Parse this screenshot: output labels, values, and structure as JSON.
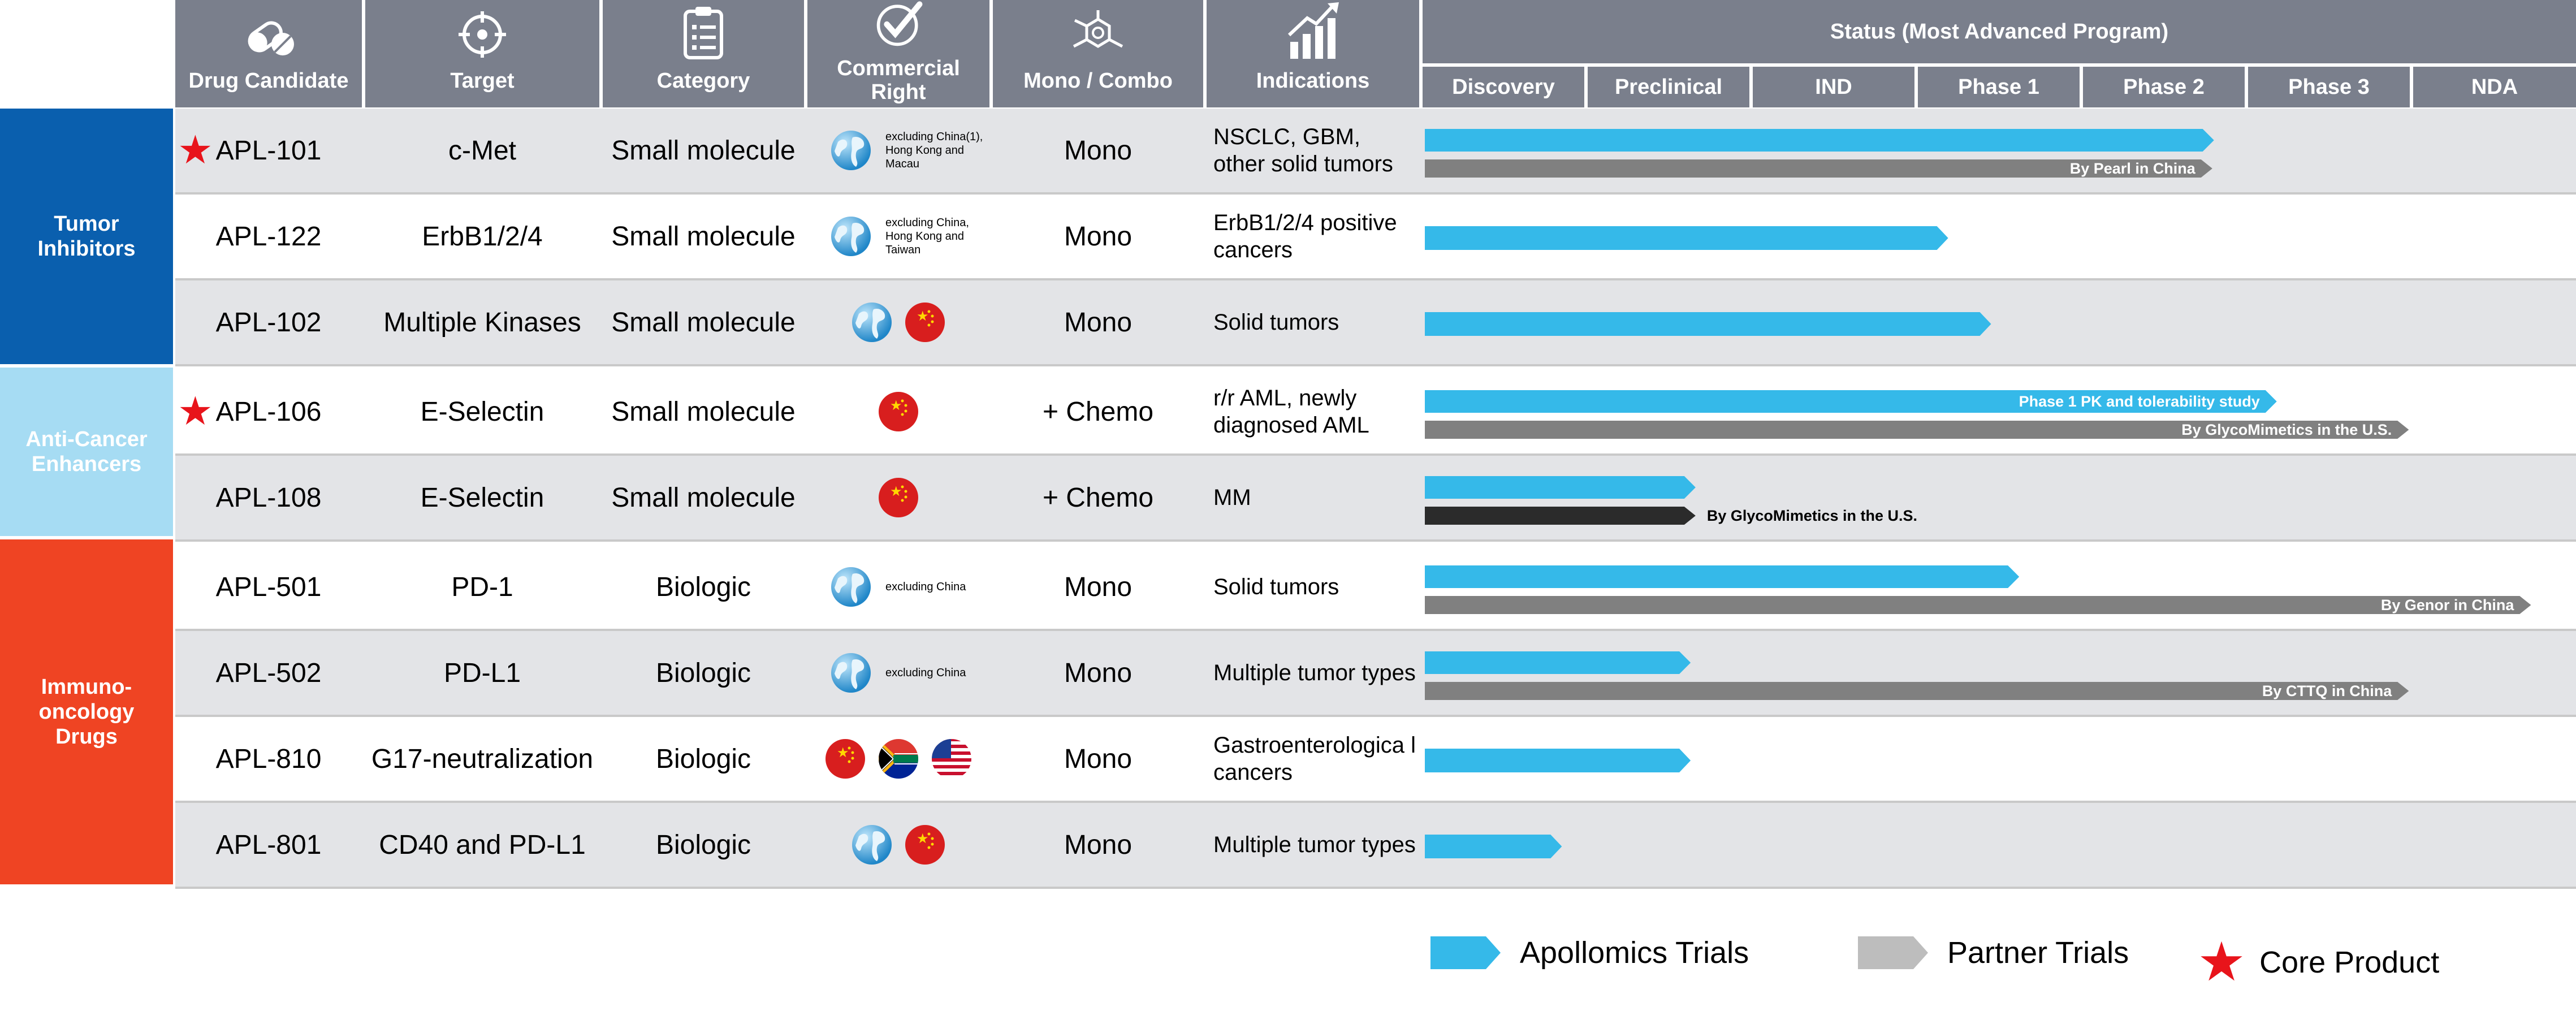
{
  "columns": {
    "drug_candidate": "Drug Candidate",
    "target": "Target",
    "category": "Category",
    "commercial_right": "Commercial Right",
    "mono_combo": "Mono / Combo",
    "indications": "Indications"
  },
  "status_title": "Status (Most Advanced Program)",
  "stages": [
    "Discovery",
    "Preclinical",
    "IND",
    "Phase 1",
    "Phase 2",
    "Phase 3",
    "NDA"
  ],
  "groups": [
    {
      "name": "Tumor Inhibitors",
      "color": "#0a5fae"
    },
    {
      "name": "Anti-Cancer Enhancers",
      "color": "#a6dcf3"
    },
    {
      "name": "Immuno-oncology Drugs",
      "color": "#ef4423"
    }
  ],
  "rows": [
    {
      "drug": "APL-101",
      "target": "c-Met",
      "category": "Small molecule",
      "rights": [
        "globe"
      ],
      "rights_text": "excluding China(1), Hong Kong and Macau",
      "mono": "Mono",
      "indication": "NSCLC, GBM, other solid tumors",
      "core": true,
      "bars": [
        {
          "type": "apollomics",
          "end": 4.78,
          "label": ""
        },
        {
          "type": "partner",
          "end": 4.77,
          "label": "By Pearl in China"
        }
      ]
    },
    {
      "drug": "APL-122",
      "target": "ErbB1/2/4",
      "category": "Small molecule",
      "rights": [
        "globe"
      ],
      "rights_text": "excluding China, Hong Kong and Taiwan",
      "mono": "Mono",
      "indication": "ErbB1/2/4 positive cancers",
      "core": false,
      "bars": [
        {
          "type": "apollomics",
          "end": 3.17,
          "label": ""
        }
      ]
    },
    {
      "drug": "APL-102",
      "target": "Multiple Kinases",
      "category": "Small molecule",
      "rights": [
        "globe",
        "china"
      ],
      "rights_text": "",
      "mono": "Mono",
      "indication": "Solid tumors",
      "core": false,
      "bars": [
        {
          "type": "apollomics",
          "end": 3.43,
          "label": ""
        }
      ]
    },
    {
      "drug": "APL-106",
      "target": "E-Selectin",
      "category": "Small molecule",
      "rights": [
        "china"
      ],
      "rights_text": "",
      "mono": "+ Chemo",
      "indication": "r/r AML, newly diagnosed AML",
      "core": true,
      "bars": [
        {
          "type": "apollomics",
          "end": 5.16,
          "label": "Phase 1 PK and tolerability study"
        },
        {
          "type": "partner",
          "end": 5.96,
          "label": "By GlycoMimetics in the U.S."
        }
      ]
    },
    {
      "drug": "APL-108",
      "target": "E-Selectin",
      "category": "Small molecule",
      "rights": [
        "china"
      ],
      "rights_text": "",
      "mono": "+ Chemo",
      "indication": "MM",
      "core": false,
      "bars": [
        {
          "type": "apollomics",
          "end": 1.64,
          "label": ""
        },
        {
          "type": "dark",
          "end": 1.64,
          "label": "By GlycoMimetics in the U.S."
        }
      ]
    },
    {
      "drug": "APL-501",
      "target": "PD-1",
      "category": "Biologic",
      "rights": [
        "globe"
      ],
      "rights_text": "excluding China",
      "mono": "Mono",
      "indication": "Solid tumors",
      "core": false,
      "bars": [
        {
          "type": "apollomics",
          "end": 3.6,
          "label": ""
        },
        {
          "type": "partner",
          "end": 6.7,
          "label": "By Genor in China"
        }
      ]
    },
    {
      "drug": "APL-502",
      "target": "PD-L1",
      "category": "Biologic",
      "rights": [
        "globe"
      ],
      "rights_text": "excluding China",
      "mono": "Mono",
      "indication": "Multiple tumor types",
      "core": false,
      "bars": [
        {
          "type": "apollomics",
          "end": 1.61,
          "label": ""
        },
        {
          "type": "partner",
          "end": 5.96,
          "label": "By CTTQ in China"
        }
      ]
    },
    {
      "drug": "APL-810",
      "target": "G17-neutralization",
      "category": "Biologic",
      "rights": [
        "china",
        "southafrica",
        "usa"
      ],
      "rights_text": "",
      "mono": "Mono",
      "indication": "Gastroenterologica l cancers",
      "core": false,
      "bars": [
        {
          "type": "apollomics",
          "end": 1.61,
          "label": ""
        }
      ]
    },
    {
      "drug": "APL-801",
      "target": "CD40 and PD-L1",
      "category": "Biologic",
      "rights": [
        "globe",
        "china"
      ],
      "rights_text": "",
      "mono": "Mono",
      "indication": "Multiple tumor types",
      "core": false,
      "bars": [
        {
          "type": "apollomics",
          "end": 0.83,
          "label": ""
        }
      ]
    }
  ],
  "legend": {
    "apollomics": "Apollomics Trials",
    "partner": "Partner Trials",
    "core": "Core Product"
  },
  "colors": {
    "header": "#7a7f8c",
    "apollomics": "#35b9e9",
    "partner": "#808080",
    "dark": "#2b2b2b",
    "core_star": "#e8141b",
    "row_gray": "#e3e4e7"
  }
}
